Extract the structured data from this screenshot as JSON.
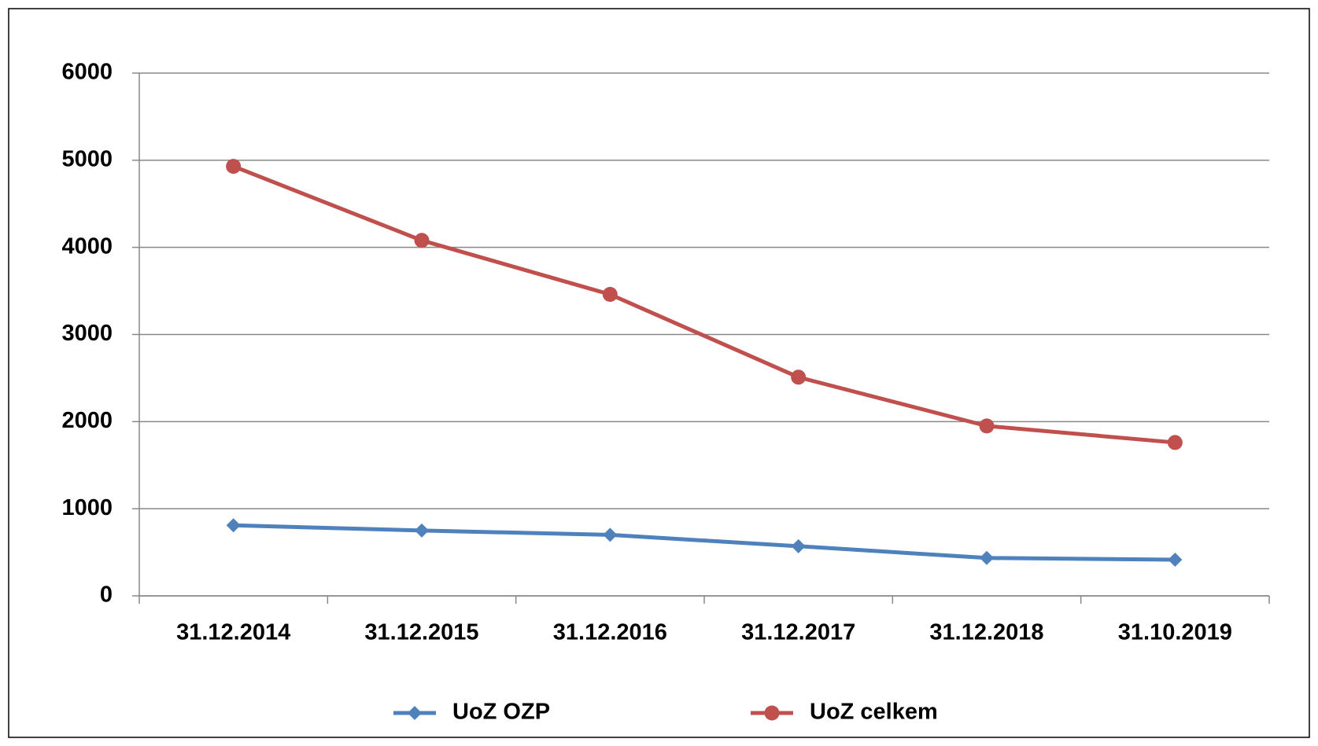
{
  "chart_data": {
    "type": "line",
    "categories": [
      "31.12.2014",
      "31.12.2015",
      "31.12.2016",
      "31.12.2017",
      "31.12.2018",
      "31.10.2019"
    ],
    "series": [
      {
        "name": "UoZ OZP",
        "color": "#4f81bd",
        "marker": "diamond",
        "values": [
          810,
          750,
          700,
          570,
          435,
          415
        ]
      },
      {
        "name": "UoZ celkem",
        "color": "#c0504d",
        "marker": "circle",
        "values": [
          4930,
          4080,
          3460,
          2510,
          1950,
          1760
        ]
      }
    ],
    "ylim": [
      0,
      6000
    ],
    "yticks": [
      0,
      1000,
      2000,
      3000,
      4000,
      5000,
      6000
    ],
    "grid": true,
    "legend": "bottom"
  }
}
